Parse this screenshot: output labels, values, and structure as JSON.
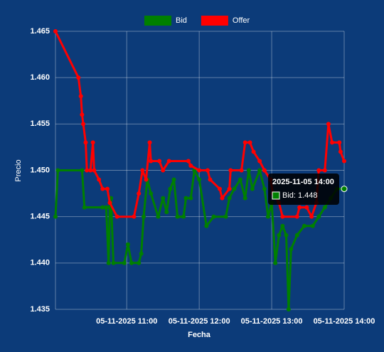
{
  "chart_data": {
    "type": "line",
    "x_label": "Fecha",
    "y_label": "Precio",
    "xlim": [
      "2025-11-05 10:01",
      "2025-11-05 14:00"
    ],
    "xticks": [
      {
        "value": "2025-11-05 11:00",
        "label": "05-11-2025 11:00"
      },
      {
        "value": "2025-11-05 12:00",
        "label": "05-11-2025 12:00"
      },
      {
        "value": "2025-11-05 13:00",
        "label": "05-11-2025 13:00"
      },
      {
        "value": "2025-11-05 14:00",
        "label": "05-11-2025 14:00"
      }
    ],
    "ylim": [
      1.435,
      1.465
    ],
    "yticks": [
      1.435,
      {
        "value": 1.44,
        "label": "1.440"
      },
      1.445,
      {
        "value": 1.45,
        "label": "1.450"
      },
      1.455,
      {
        "value": 1.46,
        "label": "1.460"
      },
      1.465
    ],
    "grid": true,
    "legend": "top",
    "series": [
      {
        "name": "Bid",
        "color": "#008000",
        "x": [
          "2025-11-05 10:01",
          "2025-11-05 10:03",
          "2025-11-05 10:23",
          "2025-11-05 10:25",
          "2025-11-05 10:40",
          "2025-11-05 10:43",
          "2025-11-05 10:45",
          "2025-11-05 10:46",
          "2025-11-05 10:47",
          "2025-11-05 10:49",
          "2025-11-05 10:58",
          "2025-11-05 11:01",
          "2025-11-05 11:04",
          "2025-11-05 11:10",
          "2025-11-05 11:12",
          "2025-11-05 11:14",
          "2025-11-05 11:17",
          "2025-11-05 11:20",
          "2025-11-05 11:26",
          "2025-11-05 11:30",
          "2025-11-05 11:33",
          "2025-11-05 11:36",
          "2025-11-05 11:39",
          "2025-11-05 11:42",
          "2025-11-05 11:47",
          "2025-11-05 11:49",
          "2025-11-05 11:53",
          "2025-11-05 11:56",
          "2025-11-05 12:00",
          "2025-11-05 12:06",
          "2025-11-05 12:12",
          "2025-11-05 12:22",
          "2025-11-05 12:25",
          "2025-11-05 12:29",
          "2025-11-05 12:34",
          "2025-11-05 12:38",
          "2025-11-05 12:41",
          "2025-11-05 12:44",
          "2025-11-05 12:50",
          "2025-11-05 12:54",
          "2025-11-05 12:57",
          "2025-11-05 13:00",
          "2025-11-05 13:03",
          "2025-11-05 13:06",
          "2025-11-05 13:09",
          "2025-11-05 13:12",
          "2025-11-05 13:14",
          "2025-11-05 13:16",
          "2025-11-05 13:21",
          "2025-11-05 13:27",
          "2025-11-05 13:34",
          "2025-11-05 13:39",
          "2025-11-05 13:44",
          "2025-11-05 13:49",
          "2025-11-05 13:54",
          "2025-11-05 14:00"
        ],
        "values": [
          1.445,
          1.45,
          1.45,
          1.446,
          1.446,
          1.446,
          1.44,
          1.446,
          1.447,
          1.44,
          1.44,
          1.442,
          1.44,
          1.44,
          1.441,
          1.445,
          1.449,
          1.4475,
          1.445,
          1.447,
          1.4455,
          1.448,
          1.449,
          1.445,
          1.445,
          1.447,
          1.447,
          1.45,
          1.449,
          1.444,
          1.445,
          1.445,
          1.447,
          1.448,
          1.449,
          1.447,
          1.45,
          1.448,
          1.45,
          1.448,
          1.445,
          1.4465,
          1.44,
          1.443,
          1.444,
          1.443,
          1.435,
          1.4415,
          1.443,
          1.444,
          1.444,
          1.445,
          1.446,
          1.447,
          1.448,
          1.448
        ]
      },
      {
        "name": "Offer",
        "color": "#ff0000",
        "x": [
          "2025-11-05 10:01",
          "2025-11-05 10:20",
          "2025-11-05 10:22",
          "2025-11-05 10:23",
          "2025-11-05 10:24",
          "2025-11-05 10:26",
          "2025-11-05 10:27",
          "2025-11-05 10:30",
          "2025-11-05 10:32",
          "2025-11-05 10:33",
          "2025-11-05 10:37",
          "2025-11-05 10:40",
          "2025-11-05 10:44",
          "2025-11-05 10:46",
          "2025-11-05 10:52",
          "2025-11-05 11:06",
          "2025-11-05 11:10",
          "2025-11-05 11:13",
          "2025-11-05 11:16",
          "2025-11-05 11:19",
          "2025-11-05 11:20",
          "2025-11-05 11:27",
          "2025-11-05 11:30",
          "2025-11-05 11:35",
          "2025-11-05 11:51",
          "2025-11-05 11:53",
          "2025-11-05 12:00",
          "2025-11-05 12:07",
          "2025-11-05 12:09",
          "2025-11-05 12:17",
          "2025-11-05 12:19",
          "2025-11-05 12:25",
          "2025-11-05 12:26",
          "2025-11-05 12:35",
          "2025-11-05 12:38",
          "2025-11-05 12:42",
          "2025-11-05 12:45",
          "2025-11-05 12:50",
          "2025-11-05 12:54",
          "2025-11-05 12:59",
          "2025-11-05 13:01",
          "2025-11-05 13:06",
          "2025-11-05 13:09",
          "2025-11-05 13:21",
          "2025-11-05 13:23",
          "2025-11-05 13:29",
          "2025-11-05 13:33",
          "2025-11-05 13:37",
          "2025-11-05 13:39",
          "2025-11-05 13:44",
          "2025-11-05 13:47",
          "2025-11-05 13:50",
          "2025-11-05 13:56",
          "2025-11-05 13:57",
          "2025-11-05 14:00"
        ],
        "values": [
          1.465,
          1.46,
          1.458,
          1.456,
          1.455,
          1.453,
          1.45,
          1.45,
          1.453,
          1.45,
          1.449,
          1.448,
          1.448,
          1.4465,
          1.445,
          1.445,
          1.4475,
          1.45,
          1.449,
          1.453,
          1.451,
          1.451,
          1.45,
          1.451,
          1.451,
          1.4505,
          1.45,
          1.45,
          1.449,
          1.448,
          1.447,
          1.448,
          1.45,
          1.45,
          1.453,
          1.453,
          1.452,
          1.451,
          1.45,
          1.449,
          1.4475,
          1.4465,
          1.445,
          1.445,
          1.446,
          1.446,
          1.445,
          1.4465,
          1.45,
          1.45,
          1.455,
          1.453,
          1.453,
          1.452,
          1.451
        ]
      }
    ],
    "tooltip": {
      "series": 0,
      "point": 55,
      "title": "2025-11-05 14:00",
      "label": "Bid: 1.448"
    }
  }
}
